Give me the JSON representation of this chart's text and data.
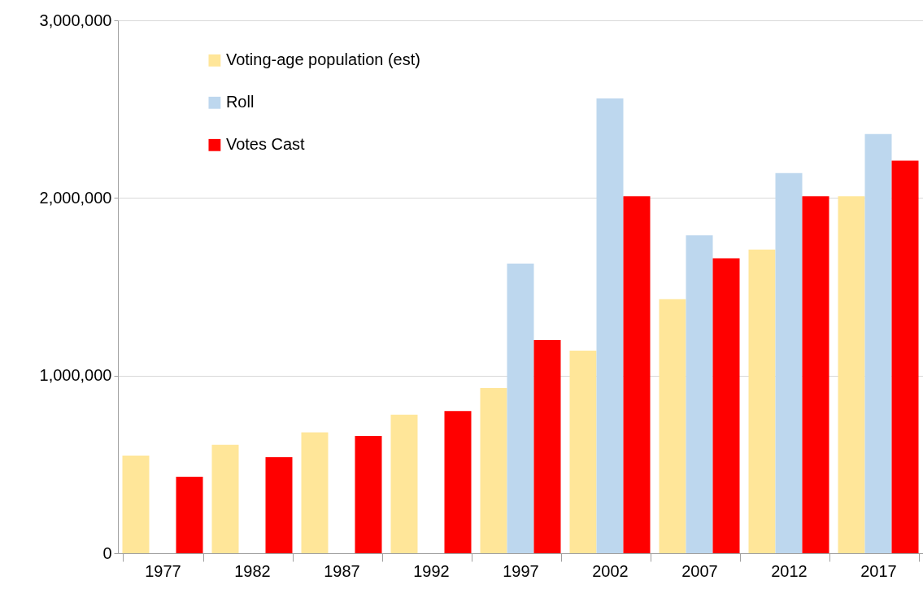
{
  "chart_data": {
    "type": "bar",
    "categories": [
      "1977",
      "1982",
      "1987",
      "1992",
      "1997",
      "2002",
      "2007",
      "2012",
      "2017"
    ],
    "series": [
      {
        "name": "Voting-age population (est)",
        "color": "#ffe699",
        "values": [
          550000,
          610000,
          680000,
          780000,
          930000,
          1140000,
          1430000,
          1710000,
          2010000
        ]
      },
      {
        "name": "Roll",
        "color": "#bdd7ee",
        "values": [
          null,
          null,
          null,
          null,
          1630000,
          2560000,
          1790000,
          2140000,
          2360000
        ]
      },
      {
        "name": "Votes Cast",
        "color": "#ff0000",
        "values": [
          430000,
          540000,
          660000,
          800000,
          1200000,
          2010000,
          1660000,
          2010000,
          2210000
        ]
      }
    ],
    "ylim": [
      0,
      3000000
    ],
    "yticks": [
      {
        "value": 0,
        "label": "0"
      },
      {
        "value": 1000000,
        "label": "1,000,000"
      },
      {
        "value": 2000000,
        "label": "2,000,000"
      },
      {
        "value": 3000000,
        "label": "3,000,000"
      }
    ],
    "grid": "y",
    "legend": "top left"
  }
}
